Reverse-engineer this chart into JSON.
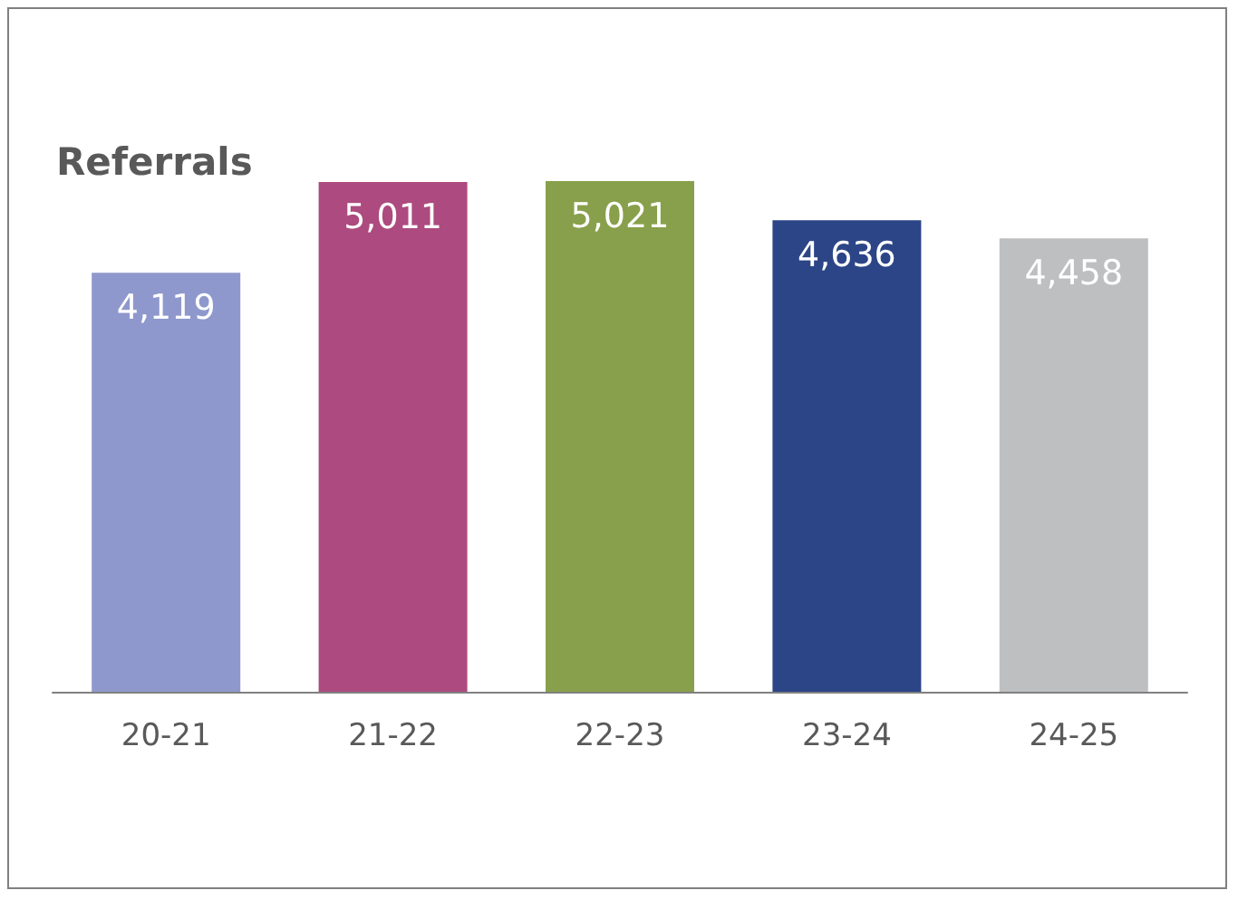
{
  "chart_data": {
    "type": "bar",
    "title": "Referrals",
    "categories": [
      "20-21",
      "21-22",
      "22-23",
      "23-24",
      "24-25"
    ],
    "values": [
      4119,
      5011,
      5021,
      4636,
      4458
    ],
    "value_labels": [
      "4,119",
      "5,011",
      "5,021",
      "4,636",
      "4,458"
    ],
    "colors": [
      "#8f98cc",
      "#ad4a7f",
      "#88a04b",
      "#2c4587",
      "#bebfc1"
    ]
  }
}
